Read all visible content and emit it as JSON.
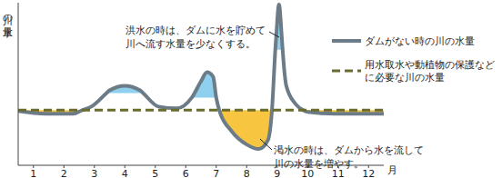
{
  "chart_data": {
    "type": "line",
    "y_label": "川の水量",
    "x_label": "月",
    "x": [
      0.5,
      1.4,
      2.3,
      2.6,
      2.9,
      3.4,
      3.5,
      4.0,
      4.5,
      4.6,
      5.1,
      5.7,
      6.2,
      6.5,
      6.7,
      6.9,
      7.0,
      7.1,
      7.5,
      8.0,
      8.4,
      8.7,
      8.83,
      8.94,
      8.97,
      9.06,
      9.15,
      9.18,
      9.3,
      9.6,
      9.85,
      10.0,
      10.9,
      12.3,
      12.5
    ],
    "xlim": [
      0.5,
      12.5
    ],
    "xticks": [
      1,
      2,
      3,
      4,
      5,
      6,
      7,
      8,
      9,
      10,
      11,
      12
    ],
    "ylim": [
      0,
      180
    ],
    "tick_labels": "x",
    "legend": "upper right",
    "series": [
      {
        "name": "ダムがない時の川の水量",
        "color": "#6b7b87",
        "line_style": "solid",
        "values": [
          60,
          57,
          57,
          61,
          65,
          80,
          83,
          88,
          83,
          80,
          65,
          63,
          75,
          93,
          103,
          98,
          75,
          61,
          38,
          23,
          18,
          28,
          61,
          128,
          143,
          178,
          143,
          128,
          88,
          68,
          61,
          59,
          57,
          57,
          57
        ]
      },
      {
        "name": "用水取水や動植物の保護などに必要な川の水量",
        "color": "#6b6b2f",
        "line_style": "dashed",
        "values": [
          61,
          61,
          61,
          61,
          61,
          61,
          61,
          61,
          61,
          61,
          61,
          61,
          61,
          61,
          61,
          61,
          61,
          61,
          61,
          61,
          61,
          61,
          61,
          61,
          61,
          61,
          61,
          61,
          61,
          61,
          61,
          61,
          61,
          61,
          61
        ]
      }
    ],
    "storage_floor": {
      "color": "#8fd0ee",
      "values": [
        null,
        null,
        null,
        null,
        null,
        80,
        80,
        80,
        80,
        80,
        null,
        null,
        75,
        75,
        75,
        75,
        75,
        null,
        null,
        null,
        null,
        null,
        null,
        128,
        128,
        128,
        128,
        128,
        null,
        null,
        null,
        null,
        null,
        null,
        null
      ]
    },
    "drought_release": {
      "color": "#f7c53f"
    },
    "annotations": [
      [
        "洪水の時は、ダムに水を貯めて",
        "川へ流す水量を少なくする。"
      ],
      [
        "渇水の時は、ダムから水を流して",
        "川の水量を増やす。"
      ]
    ]
  }
}
